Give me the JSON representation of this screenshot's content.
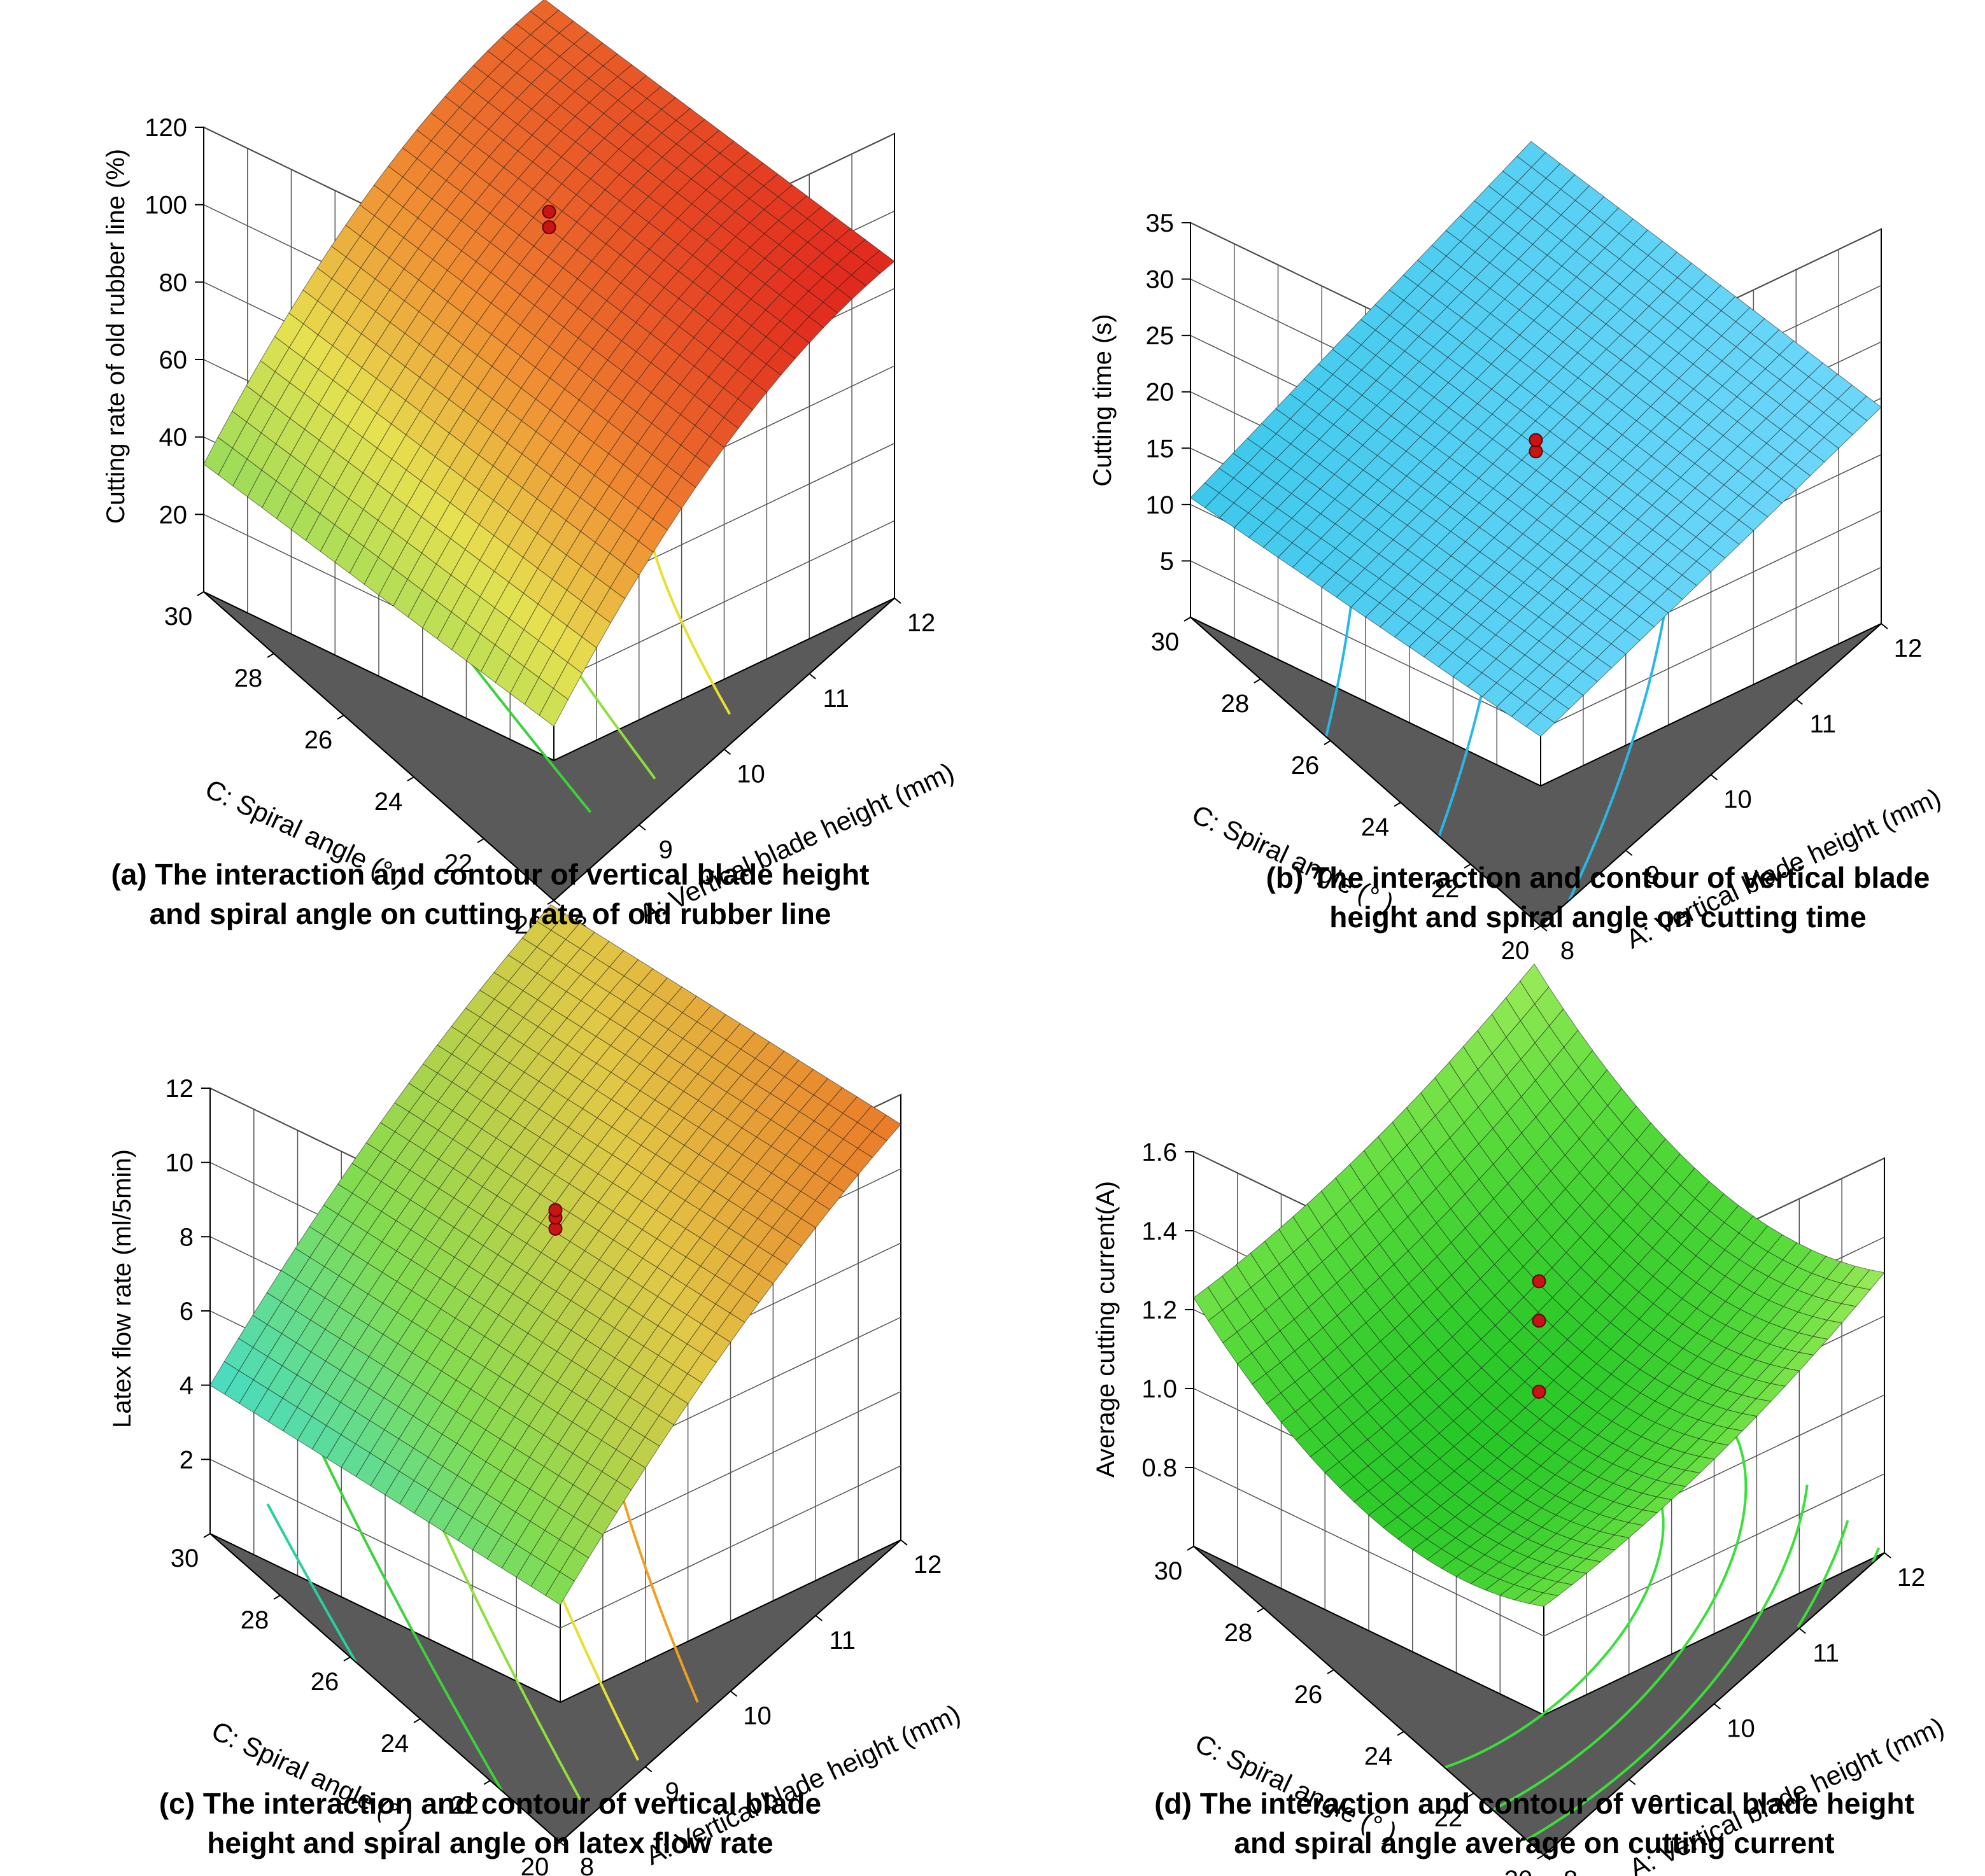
{
  "chart_data": [
    {
      "id": "a",
      "type": "surface3d",
      "zlabel": "Cutting rate of old rubber line (%)",
      "xlabel": "A: Vertical blade height (mm)",
      "ylabel": "C: Spiral angle (° )",
      "x_ticks": [
        "8",
        "9",
        "10",
        "11",
        "12"
      ],
      "y_ticks": [
        "30",
        "28",
        "26",
        "24",
        "22",
        "20"
      ],
      "z_ticks": [
        "20",
        "40",
        "60",
        "80",
        "100",
        "120"
      ],
      "xlim": [
        8,
        12
      ],
      "ylim": [
        20,
        30
      ],
      "zlim": [
        0,
        120
      ],
      "surface": {
        "const": 72,
        "a": 21,
        "c": -6,
        "aa": -12,
        "cc": 0,
        "ac": 0,
        "colormap": "yellowgreen-red"
      },
      "design_points": [
        95,
        99
      ],
      "contour_levels": [
        60,
        70,
        80,
        90,
        100
      ],
      "contour_colors": [
        "#3ad43a",
        "#8ee03a",
        "#e8e030",
        "#f09a20",
        "#e03020"
      ],
      "caption_lines": [
        "(a) The interaction and contour of vertical blade height",
        "and spiral angle on cutting rate of old rubber line"
      ]
    },
    {
      "id": "b",
      "type": "surface3d",
      "zlabel": "Cutting time (s)",
      "xlabel": "A: Vertical blade height (mm)",
      "ylabel": "C: Spiral angle (° )",
      "x_ticks": [
        "8",
        "9",
        "10",
        "11",
        "12"
      ],
      "y_ticks": [
        "30",
        "28",
        "26",
        "24",
        "22",
        "20"
      ],
      "z_ticks": [
        "5",
        "10",
        "15",
        "20",
        "25",
        "30",
        "35"
      ],
      "xlim": [
        8,
        12
      ],
      "ylim": [
        20,
        30
      ],
      "zlim": [
        0,
        35
      ],
      "surface": {
        "const": 15.5,
        "a": 1.8,
        "c": -2.5,
        "aa": 0,
        "cc": 0,
        "ac": 0.6,
        "colormap": "cyan"
      },
      "design_points": [
        15,
        16
      ],
      "contour_levels": [
        13,
        15,
        17
      ],
      "contour_colors": [
        "#28b8e8",
        "#28b8e8",
        "#28b8e8"
      ],
      "caption_lines": [
        "(b) The interaction and contour of vertical blade",
        "height and spiral angle on cutting time"
      ]
    },
    {
      "id": "c",
      "type": "surface3d",
      "zlabel": "Latex flow rate (ml/5min)",
      "xlabel": "A: Vertical blade height (mm)",
      "ylabel": "C: Spiral angle (° )",
      "x_ticks": [
        "8",
        "9",
        "10",
        "11",
        "12"
      ],
      "y_ticks": [
        "30",
        "28",
        "26",
        "24",
        "22",
        "20"
      ],
      "z_ticks": [
        "2",
        "4",
        "6",
        "8",
        "10",
        "12"
      ],
      "xlim": [
        8,
        12
      ],
      "ylim": [
        20,
        30
      ],
      "zlim": [
        0,
        12
      ],
      "surface": {
        "const": 8.2,
        "a": 2.4,
        "c": -1.2,
        "aa": -0.6,
        "cc": 0,
        "ac": 0,
        "colormap": "cyan-green-orange"
      },
      "design_points": [
        8.3,
        8.6,
        8.8
      ],
      "contour_levels": [
        5,
        6,
        7,
        8,
        9
      ],
      "contour_colors": [
        "#28d0a0",
        "#3ad43a",
        "#8ee03a",
        "#e8e030",
        "#f0a020"
      ],
      "caption_lines": [
        "(c) The interaction and contour of vertical blade",
        "height and spiral angle on latex flow rate"
      ]
    },
    {
      "id": "d",
      "type": "surface3d",
      "zlabel": "Average cutting current(A)",
      "xlabel": "A: Vertical blade height (mm)",
      "ylabel": "C: Spiral angle (° )",
      "x_ticks": [
        "8",
        "9",
        "10",
        "11",
        "12"
      ],
      "y_ticks": [
        "30",
        "28",
        "26",
        "24",
        "22",
        "20"
      ],
      "z_ticks": [
        "0.8",
        "1.0",
        "1.2",
        "1.4",
        "1.6"
      ],
      "xlim": [
        8,
        12
      ],
      "ylim": [
        20,
        30
      ],
      "zlim": [
        0.6,
        1.6
      ],
      "surface": {
        "const": 1.06,
        "a": 0.04,
        "c": 0.0,
        "aa": 0.05,
        "cc": 0.16,
        "ac": 0,
        "colormap": "green"
      },
      "design_points": [
        1.0,
        1.18,
        1.28
      ],
      "contour_levels": [
        1.1,
        1.15,
        1.2,
        1.25,
        1.3
      ],
      "contour_colors": [
        "#3ae03a",
        "#3ae03a",
        "#3ae03a",
        "#3ae03a",
        "#3ae03a"
      ],
      "caption_lines": [
        "(d) The interaction and contour of vertical blade height",
        "and spiral angle  average on cutting current"
      ]
    }
  ]
}
